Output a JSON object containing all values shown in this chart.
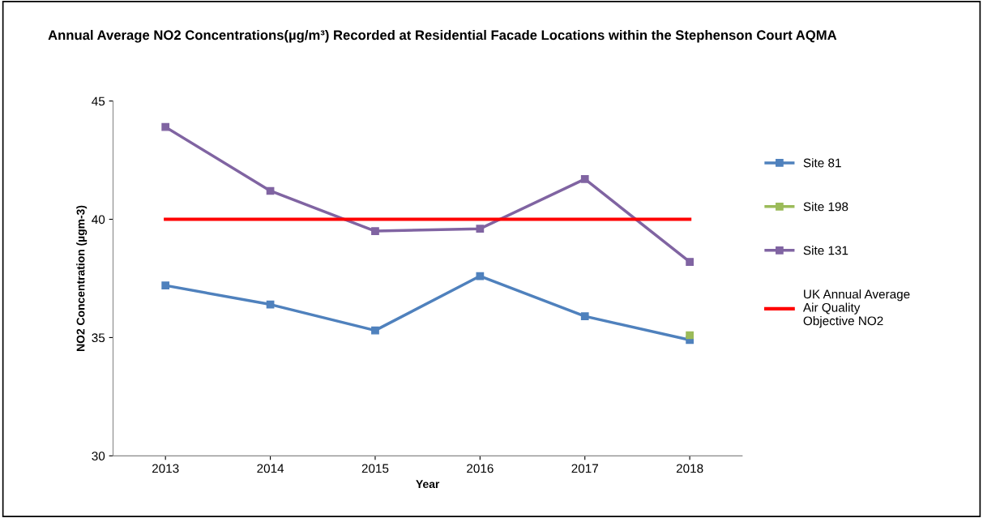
{
  "chart_data": {
    "type": "line",
    "title": "Annual Average NO2 Concentrations(µg/m³) Recorded at Residential Facade Locations within the Stephenson Court AQMA",
    "xlabel": "Year",
    "ylabel": "NO2 Concentration (µgm-3)",
    "categories": [
      "2013",
      "2014",
      "2015",
      "2016",
      "2017",
      "2018"
    ],
    "series": [
      {
        "name": "Site 81",
        "color": "#4f81bd",
        "values": [
          37.2,
          36.4,
          35.3,
          37.6,
          35.9,
          34.9
        ]
      },
      {
        "name": "Site 198",
        "color": "#9bbb59",
        "values": [
          null,
          null,
          null,
          null,
          null,
          35.1
        ]
      },
      {
        "name": "Site 131",
        "color": "#8064a2",
        "values": [
          43.9,
          41.2,
          39.5,
          39.6,
          41.7,
          38.2
        ]
      },
      {
        "name": "UK Annual Average Air Quality Objective NO2",
        "color": "#ff0000",
        "values": [
          40,
          40,
          40,
          40,
          40,
          40
        ],
        "marker": "none"
      }
    ],
    "ylim": [
      30,
      45
    ],
    "yticks": [
      30,
      35,
      40,
      45
    ],
    "grid": false,
    "legend": "right",
    "marker": "square",
    "line_style": "solid"
  }
}
